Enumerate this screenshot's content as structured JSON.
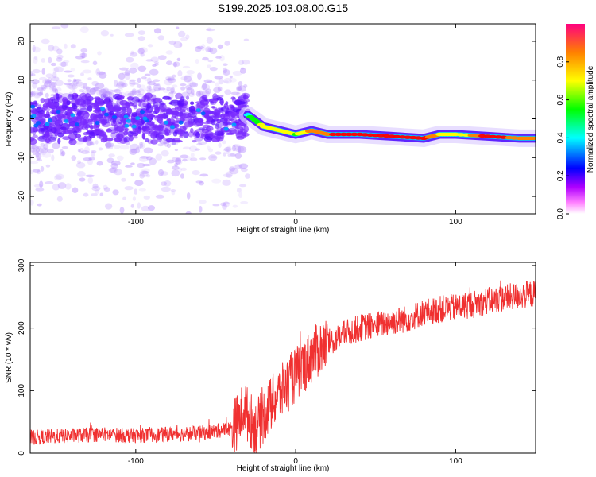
{
  "title": "S199.2025.103.08.00.G15",
  "colors": {
    "snr_line": "#f03030",
    "spectrum_ridge": "#ff2020",
    "scatter_base": "#7a33ff"
  },
  "chart_data": [
    {
      "type": "heatmap",
      "xlabel": "Height of straight line (km)",
      "ylabel": "Frequency (Hz)",
      "xlim": [
        -166,
        150
      ],
      "ylim": [
        -24.5,
        24.5
      ],
      "xticks": [
        -100,
        0,
        100
      ],
      "yticks": [
        -20,
        -10,
        0,
        10,
        20
      ],
      "colorbar": {
        "label": "Normalized spectral amplitude",
        "range": [
          0,
          1
        ],
        "ticks": [
          0.0,
          0.2,
          0.4,
          0.6,
          0.8
        ],
        "tick_labels": [
          "0.0",
          "0.2",
          "0.4",
          "0.6",
          "0.8"
        ],
        "stops": [
          "#ffffff",
          "#ff00ff",
          "#8000ff",
          "#0000ff",
          "#00ffff",
          "#00ff00",
          "#ffff00",
          "#ff8000",
          "#ff0000"
        ]
      },
      "ridge": {
        "x": [
          -30,
          -20,
          -10,
          0,
          10,
          20,
          40,
          60,
          80,
          90,
          100,
          120,
          140,
          150
        ],
        "frequency": [
          1,
          -2,
          -3,
          -4,
          -3,
          -4,
          -4,
          -4.5,
          -5,
          -4,
          -4,
          -4.5,
          -5,
          -5
        ],
        "amplitude": [
          0.4,
          0.6,
          0.7,
          0.55,
          0.75,
          0.85,
          0.9,
          0.95,
          0.9,
          0.7,
          0.6,
          0.9,
          0.8,
          0.8
        ]
      },
      "scatter_region_x": [
        -166,
        -35
      ]
    },
    {
      "type": "line",
      "xlabel": "Height of straight line (km)",
      "ylabel": "SNR (10 * v/v)",
      "xlim": [
        -166,
        150
      ],
      "ylim": [
        0,
        305
      ],
      "xticks": [
        -100,
        0,
        100
      ],
      "yticks": [
        0,
        100,
        200,
        300
      ],
      "series": [
        {
          "x": [
            -166,
            -140,
            -120,
            -100,
            -80,
            -60,
            -50,
            -40,
            -35,
            -32,
            -30,
            -25,
            -20,
            -15,
            -10,
            -5,
            0,
            5,
            10,
            15,
            20,
            30,
            40,
            50,
            60,
            70,
            80,
            90,
            100,
            110,
            120,
            130,
            140,
            150
          ],
          "values": [
            25,
            28,
            30,
            28,
            30,
            32,
            35,
            40,
            55,
            78,
            60,
            40,
            60,
            80,
            95,
            110,
            125,
            140,
            155,
            168,
            175,
            190,
            200,
            205,
            210,
            215,
            225,
            230,
            233,
            238,
            243,
            248,
            252,
            255
          ]
        }
      ]
    }
  ]
}
